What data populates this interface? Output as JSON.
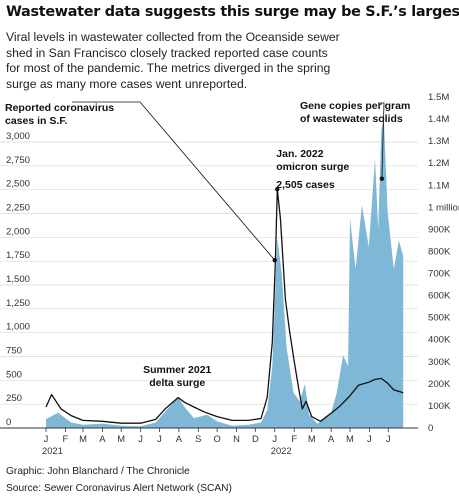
{
  "title": "Wastewater data suggests this surge may be S.F.’s largest",
  "subtitle": "Viral levels in wastewater collected from the Oceanside sewer shed in San Francisco closely tracked reported case counts for most of the pandemic. The metrics diverged in the spring surge as many more cases went unreported.",
  "credits": {
    "graphic": "Graphic: John Blanchard / The Chronicle",
    "source": "Source: Sewer Coronavirus Alert Network (SCAN)"
  },
  "colors": {
    "wastewater_fill": "#7fb8d6",
    "cases_line": "#111111",
    "gridline": "#d9d9d9"
  },
  "chart_data": {
    "type": "area",
    "x_unit": "month",
    "x_ticks": [
      "J",
      "F",
      "M",
      "A",
      "M",
      "J",
      "J",
      "A",
      "S",
      "O",
      "N",
      "D",
      "J",
      "F",
      "M",
      "A",
      "M",
      "J",
      "J"
    ],
    "x_year_labels": [
      {
        "label": "2021",
        "at": "2021-01"
      },
      {
        "label": "2022",
        "at": "2022-01"
      }
    ],
    "x_range": [
      "2021-01-01",
      "2022-07-31"
    ],
    "left_axis": {
      "label": "Reported coronavirus cases in S.F.",
      "range": [
        0,
        3000
      ],
      "ticks": [
        "3,000",
        "2,750",
        "2,500",
        "2,250",
        "2,000",
        "1,750",
        "1,500",
        "1,250",
        "1,000",
        "750",
        "500",
        "250",
        "0"
      ],
      "tick_values": [
        3000,
        2750,
        2500,
        2250,
        2000,
        1750,
        1500,
        1250,
        1000,
        750,
        500,
        250,
        0
      ]
    },
    "right_axis": {
      "label": "Gene copies per gram of wastewater solids",
      "range": [
        0,
        1500000
      ],
      "ticks": [
        "1.5M",
        "1.4M",
        "1.3M",
        "1.2M",
        "1.1M",
        "1 million",
        "900K",
        "800K",
        "700K",
        "600K",
        "500K",
        "400K",
        "300K",
        "200K",
        "100K",
        "0"
      ],
      "tick_values": [
        1500000,
        1400000,
        1300000,
        1200000,
        1100000,
        1000000,
        900000,
        800000,
        700000,
        600000,
        500000,
        400000,
        300000,
        200000,
        100000,
        0
      ]
    },
    "grid": "horizontal",
    "series": [
      {
        "name": "Gene copies per gram of wastewater solids",
        "kind": "area",
        "axis": "right",
        "points": [
          [
            "2021-01-01",
            40000
          ],
          [
            "2021-01-20",
            70000
          ],
          [
            "2021-02-10",
            25000
          ],
          [
            "2021-03-01",
            15000
          ],
          [
            "2021-04-01",
            20000
          ],
          [
            "2021-05-01",
            10000
          ],
          [
            "2021-06-01",
            8000
          ],
          [
            "2021-06-25",
            25000
          ],
          [
            "2021-07-15",
            90000
          ],
          [
            "2021-07-31",
            140000
          ],
          [
            "2021-08-10",
            95000
          ],
          [
            "2021-08-25",
            45000
          ],
          [
            "2021-09-15",
            60000
          ],
          [
            "2021-10-01",
            30000
          ],
          [
            "2021-10-25",
            10000
          ],
          [
            "2021-11-20",
            15000
          ],
          [
            "2021-12-10",
            25000
          ],
          [
            "2021-12-20",
            80000
          ],
          [
            "2021-12-28",
            280000
          ],
          [
            "2022-01-05",
            860000
          ],
          [
            "2022-01-12",
            700000
          ],
          [
            "2022-01-20",
            360000
          ],
          [
            "2022-01-31",
            160000
          ],
          [
            "2022-02-10",
            120000
          ],
          [
            "2022-02-18",
            200000
          ],
          [
            "2022-02-25",
            60000
          ],
          [
            "2022-03-10",
            20000
          ],
          [
            "2022-03-31",
            60000
          ],
          [
            "2022-04-10",
            160000
          ],
          [
            "2022-04-20",
            330000
          ],
          [
            "2022-04-28",
            280000
          ],
          [
            "2022-05-01",
            950000
          ],
          [
            "2022-05-10",
            720000
          ],
          [
            "2022-05-20",
            1010000
          ],
          [
            "2022-05-31",
            820000
          ],
          [
            "2022-06-10",
            1220000
          ],
          [
            "2022-06-15",
            900000
          ],
          [
            "2022-06-20",
            1350000
          ],
          [
            "2022-06-24",
            1410000
          ],
          [
            "2022-06-30",
            980000
          ],
          [
            "2022-07-10",
            720000
          ],
          [
            "2022-07-18",
            850000
          ],
          [
            "2022-07-25",
            780000
          ]
        ]
      },
      {
        "name": "Reported coronavirus cases in S.F.",
        "kind": "line",
        "axis": "left",
        "points": [
          [
            "2021-01-01",
            220
          ],
          [
            "2021-01-10",
            350
          ],
          [
            "2021-01-25",
            200
          ],
          [
            "2021-02-10",
            130
          ],
          [
            "2021-03-01",
            80
          ],
          [
            "2021-04-01",
            70
          ],
          [
            "2021-05-01",
            50
          ],
          [
            "2021-06-01",
            50
          ],
          [
            "2021-06-25",
            90
          ],
          [
            "2021-07-10",
            200
          ],
          [
            "2021-07-31",
            320
          ],
          [
            "2021-08-10",
            270
          ],
          [
            "2021-08-25",
            220
          ],
          [
            "2021-09-10",
            170
          ],
          [
            "2021-10-01",
            120
          ],
          [
            "2021-10-25",
            80
          ],
          [
            "2021-11-20",
            80
          ],
          [
            "2021-12-10",
            100
          ],
          [
            "2021-12-20",
            320
          ],
          [
            "2021-12-28",
            900
          ],
          [
            "2022-01-02",
            1750
          ],
          [
            "2022-01-05",
            2505
          ],
          [
            "2022-01-10",
            2200
          ],
          [
            "2022-01-18",
            1350
          ],
          [
            "2022-01-25",
            1000
          ],
          [
            "2022-02-01",
            700
          ],
          [
            "2022-02-08",
            420
          ],
          [
            "2022-02-14",
            200
          ],
          [
            "2022-02-20",
            280
          ],
          [
            "2022-03-01",
            120
          ],
          [
            "2022-03-15",
            70
          ],
          [
            "2022-03-31",
            150
          ],
          [
            "2022-04-15",
            230
          ],
          [
            "2022-04-30",
            330
          ],
          [
            "2022-05-15",
            450
          ],
          [
            "2022-05-31",
            480
          ],
          [
            "2022-06-10",
            510
          ],
          [
            "2022-06-20",
            520
          ],
          [
            "2022-06-30",
            470
          ],
          [
            "2022-07-10",
            400
          ],
          [
            "2022-07-20",
            380
          ],
          [
            "2022-07-25",
            370
          ]
        ]
      }
    ],
    "annotations": [
      {
        "lines": [
          "Summer 2021",
          "delta surge"
        ],
        "at": "2021-07-31"
      },
      {
        "lines": [
          "Jan. 2022",
          "omicron surge"
        ],
        "at": "2022-01-05"
      },
      {
        "lines": [
          "2,505 cases"
        ],
        "at": "2022-01-05",
        "value": 2505
      },
      {
        "lines": [
          "Reported coronavirus",
          "cases in S.F."
        ],
        "points_to": [
          "2022-01-01",
          1760
        ],
        "series": "Reported coronavirus cases in S.F."
      },
      {
        "lines": [
          "Gene copies per gram",
          "of wastewater solids"
        ],
        "points_to": [
          "2022-06-21",
          1130000
        ],
        "series": "Gene copies per gram of wastewater solids"
      }
    ]
  }
}
